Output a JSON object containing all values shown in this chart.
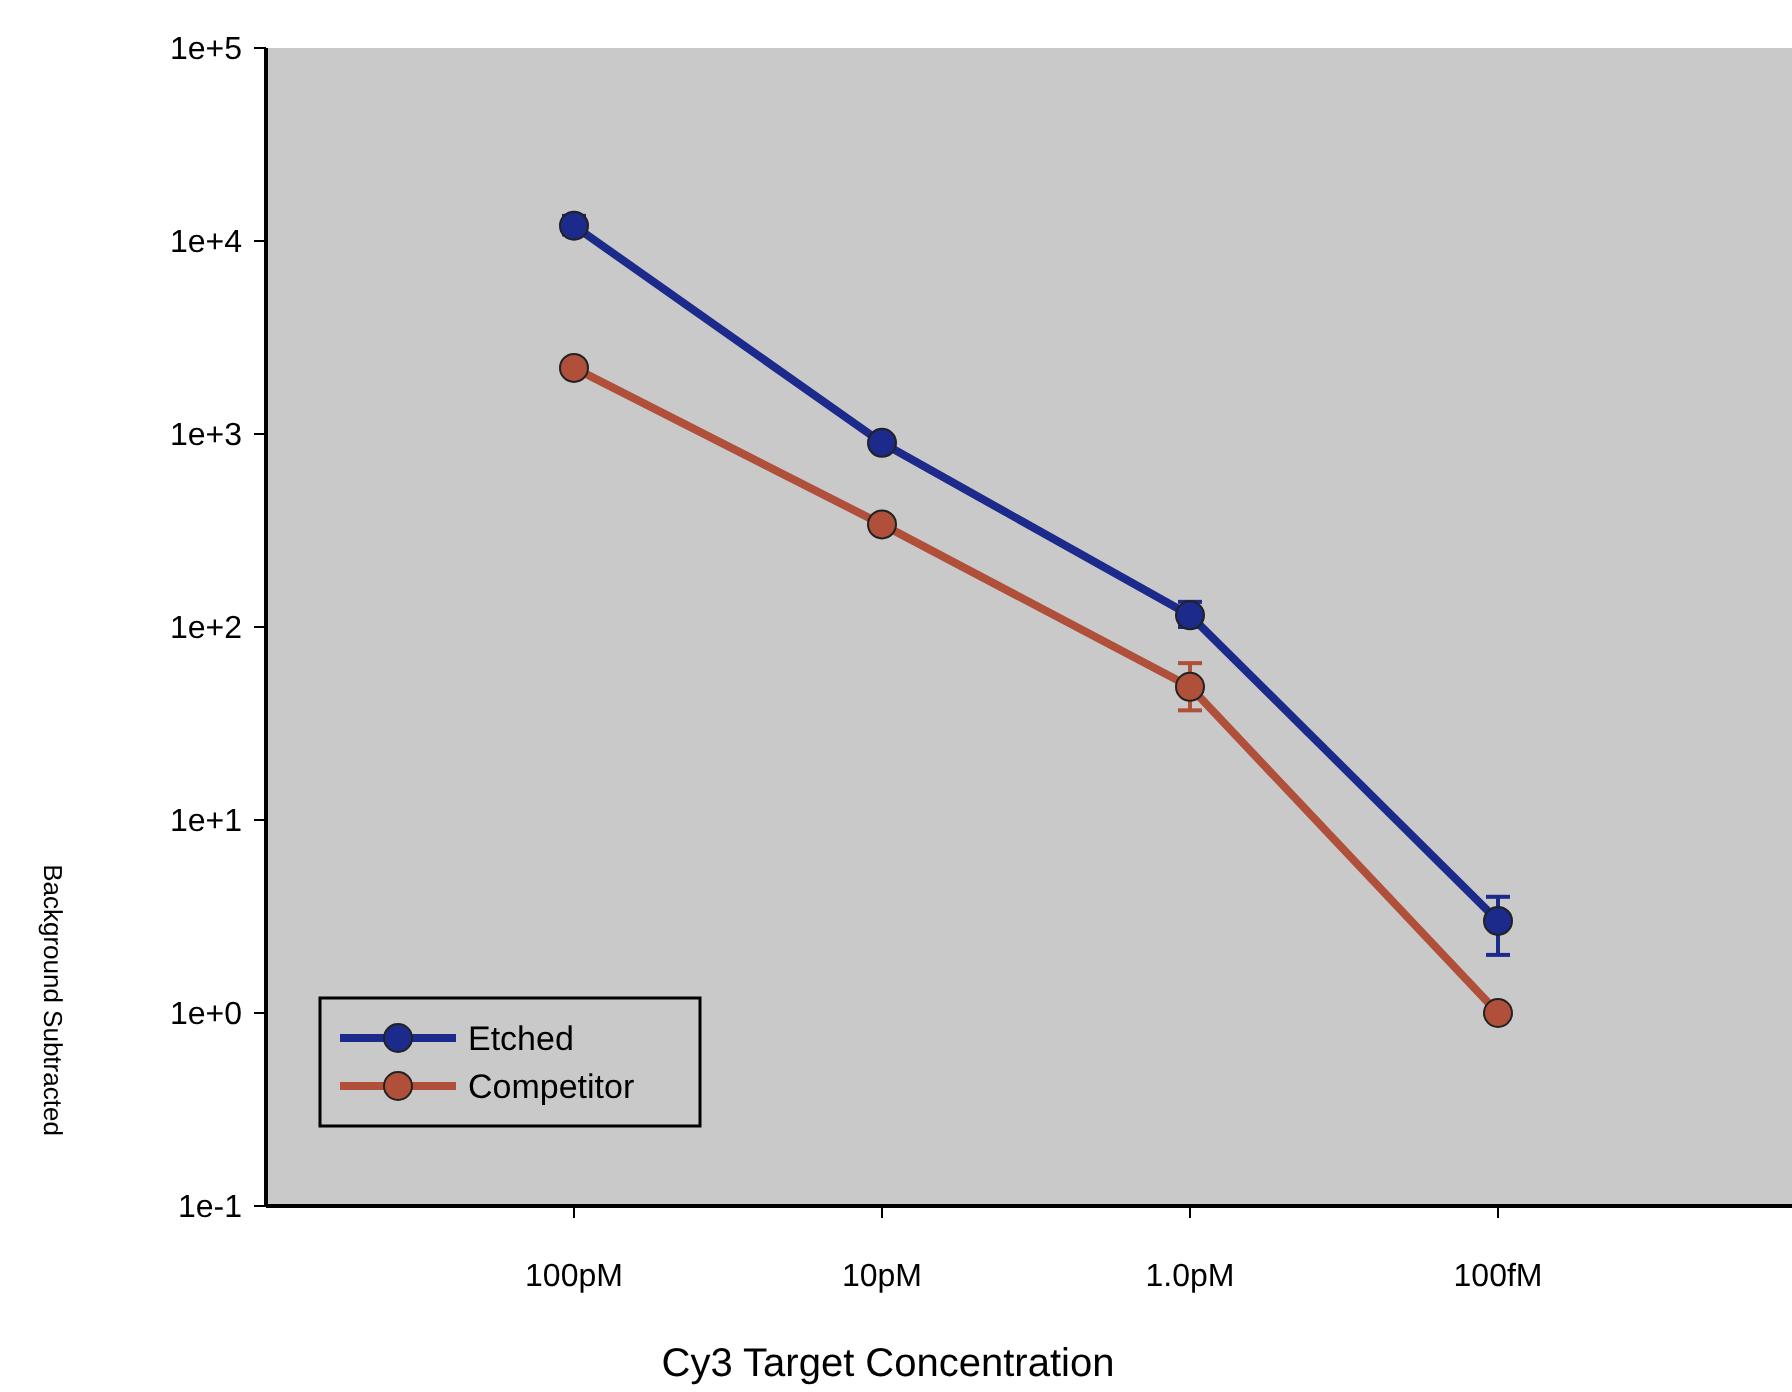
{
  "chart_data": {
    "type": "line",
    "xlabel": "Cy3 Target Concentration",
    "ylabel": "Background Subtracted",
    "categories": [
      "100pM",
      "10pM",
      "1.0pM",
      "100fM"
    ],
    "series": [
      {
        "name": "Etched",
        "color": "#1c2a8c",
        "values": [
          12000,
          900,
          115,
          3.0
        ],
        "errors": [
          [
            10800,
            13500
          ],
          null,
          [
            100,
            135
          ],
          [
            2.0,
            4.0
          ]
        ]
      },
      {
        "name": "Competitor",
        "color": "#b0503a",
        "values": [
          2200,
          340,
          49,
          1.0
        ],
        "errors": [
          null,
          null,
          [
            37,
            65
          ],
          null
        ]
      }
    ],
    "log": "y",
    "ylim": [
      0.1,
      100000
    ],
    "yticks": [
      {
        "value": 0.1,
        "label": "1e-1"
      },
      {
        "value": 1,
        "label": "1e+0"
      },
      {
        "value": 10,
        "label": "1e+1"
      },
      {
        "value": 100,
        "label": "1e+2"
      },
      {
        "value": 1000,
        "label": "1e+3"
      },
      {
        "value": 10000,
        "label": "1e+4"
      },
      {
        "value": 100000,
        "label": "1e+5"
      }
    ],
    "legend": "bottom left",
    "marker": "circle",
    "line_style": "solid",
    "grid": false
  }
}
